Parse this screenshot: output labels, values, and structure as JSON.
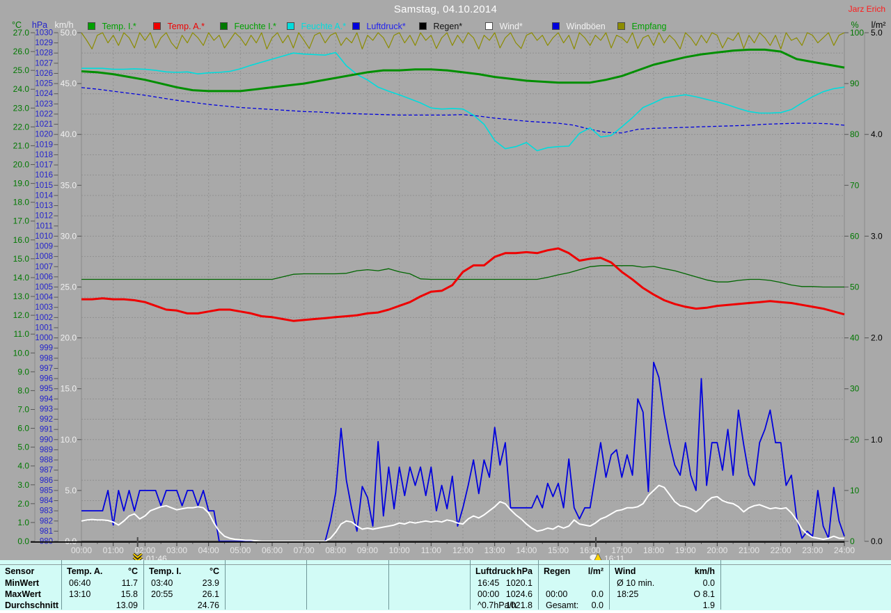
{
  "header": {
    "title": "Samstag, 04.10.2014",
    "watermark": "Jarz Erich"
  },
  "legend": {
    "items": [
      {
        "label": "Temp. I.*",
        "box": "#00a000",
        "color": "#00a000"
      },
      {
        "label": "Temp. A.*",
        "box": "#ee0000",
        "color": "#ee0000"
      },
      {
        "label": "Feuchte I.*",
        "box": "#007800",
        "color": "#00a000"
      },
      {
        "label": "Feuchte A.*",
        "box": "#00dcdc",
        "color": "#00dcdc"
      },
      {
        "label": "Luftdruck*",
        "box": "#0000dd",
        "color": "#2222ee"
      },
      {
        "label": "Regen*",
        "box": "#000000",
        "color": "#111111"
      },
      {
        "label": "Wind*",
        "box": "#ffffff",
        "color": "#f2f2f2"
      },
      {
        "label": "Windböen",
        "box": "#0000dd",
        "color": "#f2f2f2"
      },
      {
        "label": "Empfang",
        "box": "#8c8c00",
        "color": "#00a000"
      }
    ]
  },
  "axes": {
    "left": [
      {
        "unit": "°C",
        "color": "#007800"
      },
      {
        "unit": "hPa",
        "color": "#2222cc"
      },
      {
        "unit": "km/h",
        "color": "#f0f0f0"
      }
    ],
    "right": [
      {
        "unit": "%",
        "color": "#007800"
      },
      {
        "unit": "l/m²",
        "color": "#000000"
      }
    ]
  },
  "chart_data": {
    "type": "line",
    "x_unit": "hours",
    "x_range": [
      0,
      24
    ],
    "grid": true,
    "axes": {
      "temp": {
        "min": 0,
        "max": 27,
        "label_step": 1,
        "unit": "°C"
      },
      "hpa": {
        "min": 980,
        "max": 1030,
        "label_step": 1,
        "unit": "hPa"
      },
      "kmh": {
        "min": 0,
        "max": 50,
        "label_step": 5,
        "unit": "km/h"
      },
      "pct": {
        "min": 0,
        "max": 100,
        "label_step": 10,
        "unit": "%"
      },
      "lm2": {
        "min": 0,
        "max": 5,
        "label_step": 1,
        "unit": "l/m²"
      }
    },
    "markers": [
      {
        "time": "01:46",
        "hour": 1.767,
        "icon": "storm-arrow-icon"
      },
      {
        "time": "16:11",
        "hour": 16.183,
        "icon": "cloud-warning-icon"
      }
    ],
    "series": [
      {
        "name": "Empfang",
        "axis": "pct",
        "color": "#8c8c00",
        "width": 1.2,
        "step_min": 10,
        "values": [
          100,
          98.5,
          96.8,
          99.5,
          100,
          98,
          99.5,
          97.5,
          100,
          99,
          97,
          100,
          98.5,
          100,
          97,
          99,
          100,
          98,
          96.8,
          99.5,
          98,
          100,
          99,
          97.5,
          100,
          98.5,
          99.5,
          97,
          98.5,
          100,
          99,
          97.5,
          99.5,
          98,
          100,
          96.8,
          99,
          100,
          98,
          99.5,
          97,
          100,
          98.5,
          96.9,
          99.5,
          100,
          98,
          99.5,
          100,
          97.5,
          99,
          98,
          100,
          96.8,
          99.5,
          98.5,
          100,
          99,
          97,
          99.5,
          100,
          98,
          99.5,
          97.5,
          100,
          98.5,
          99.5,
          96.9,
          99,
          100,
          97.5,
          99.5,
          98,
          100,
          99,
          96.8,
          99.5,
          98.5,
          100,
          97,
          99,
          100,
          98,
          96.9,
          99.5,
          100,
          98.5,
          99.5,
          97.5,
          99,
          100,
          98,
          99.5,
          96.8,
          100,
          99,
          97.5,
          99.5,
          98.5,
          100,
          97,
          99.5,
          99,
          98,
          100,
          96.9,
          99,
          99.5,
          97.5,
          100,
          98,
          99.5,
          98.5,
          96.8,
          100,
          99,
          97.5,
          99.5,
          98,
          100,
          99.5,
          97,
          99,
          98.5,
          100,
          96.9,
          99.5,
          98,
          100,
          99,
          97.5,
          99.5,
          96.8,
          100,
          98.5,
          99,
          97.5,
          100,
          99.5,
          98,
          99,
          100,
          97.5,
          99.5,
          100
        ]
      },
      {
        "name": "Luftdruck",
        "axis": "hpa",
        "color": "#0000dd",
        "width": 1.3,
        "dash": "5,3",
        "step_min": 30,
        "values": [
          1024.6,
          1024.45,
          1024.25,
          1024.05,
          1023.85,
          1023.6,
          1023.35,
          1023.15,
          1022.95,
          1022.8,
          1022.65,
          1022.55,
          1022.45,
          1022.35,
          1022.25,
          1022.2,
          1022.1,
          1022.05,
          1022,
          1021.95,
          1021.9,
          1021.9,
          1021.9,
          1021.9,
          1021.95,
          1021.8,
          1021.6,
          1021.45,
          1021.3,
          1021.2,
          1021.1,
          1020.9,
          1020.5,
          1020.2,
          1020.15,
          1020.5,
          1020.6,
          1020.65,
          1020.7,
          1020.75,
          1020.8,
          1020.85,
          1020.9,
          1021,
          1021.05,
          1021.1,
          1021.1,
          1021.05,
          1020.9
        ]
      },
      {
        "name": "Feuchte A.",
        "axis": "pct",
        "color": "#00dcdc",
        "width": 1.6,
        "step_min": 20,
        "values": [
          93,
          93,
          93,
          92.8,
          92.8,
          92.9,
          92.8,
          92.6,
          92.3,
          92.2,
          92.3,
          91.9,
          92.1,
          92.2,
          92.4,
          92.9,
          93.6,
          94.2,
          94.8,
          95.4,
          96,
          95.8,
          95.7,
          95.6,
          96.1,
          93.5,
          91.8,
          90.7,
          89.3,
          88.5,
          87.8,
          87,
          86.2,
          85.2,
          85,
          85.1,
          85,
          83.8,
          82,
          78.8,
          77.2,
          77.6,
          78.4,
          76.8,
          77.4,
          77.6,
          77.7,
          80.2,
          81.3,
          79.5,
          79.8,
          81.5,
          83.3,
          85.3,
          86.2,
          87.2,
          87.5,
          87.8,
          87.4,
          86.9,
          86.4,
          85.8,
          85.1,
          84.5,
          84.2,
          84.2,
          84.3,
          84.9,
          86.2,
          87.4,
          88.4,
          89,
          89.3
        ]
      },
      {
        "name": "Feuchte I.",
        "axis": "pct",
        "color": "#006600",
        "width": 1.3,
        "step_min": 20,
        "values": [
          51.5,
          51.5,
          51.5,
          51.5,
          51.5,
          51.5,
          51.5,
          51.5,
          51.5,
          51.5,
          51.5,
          51.5,
          51.5,
          51.5,
          51.5,
          51.5,
          51.5,
          51.5,
          51.5,
          52,
          52.5,
          52.6,
          52.6,
          52.6,
          52.6,
          52.7,
          53.2,
          53.4,
          53.2,
          53.6,
          53,
          52.6,
          51.6,
          51.5,
          51.5,
          51.5,
          51.5,
          51.5,
          51.5,
          51.5,
          51.5,
          51.5,
          51.5,
          51.5,
          51.9,
          52.4,
          52.8,
          53.4,
          54,
          54.2,
          54.2,
          54.2,
          54.2,
          53.9,
          54.05,
          53.6,
          53.2,
          52.6,
          52,
          51.4,
          51,
          51,
          51.3,
          51.5,
          51.5,
          51.3,
          50.9,
          50.4,
          50.1,
          50.1,
          50,
          50,
          50
        ]
      },
      {
        "name": "Temp. I.",
        "axis": "temp",
        "color": "#008f00",
        "width": 3,
        "step_min": 30,
        "values": [
          24.95,
          24.9,
          24.8,
          24.65,
          24.5,
          24.3,
          24.1,
          23.95,
          23.9,
          23.9,
          23.9,
          24,
          24.1,
          24.2,
          24.3,
          24.45,
          24.6,
          24.75,
          24.9,
          25,
          25,
          25.05,
          25.05,
          25,
          24.9,
          24.8,
          24.65,
          24.55,
          24.45,
          24.4,
          24.35,
          24.35,
          24.35,
          24.5,
          24.7,
          25,
          25.3,
          25.5,
          25.7,
          25.85,
          25.95,
          26.05,
          26.1,
          26.1,
          26,
          25.6,
          25.45,
          25.3,
          25.15
        ]
      },
      {
        "name": "Temp. A.",
        "axis": "temp",
        "color": "#ee0000",
        "width": 3,
        "step_min": 20,
        "values": [
          12.85,
          12.85,
          12.9,
          12.85,
          12.85,
          12.8,
          12.7,
          12.5,
          12.3,
          12.25,
          12.1,
          12.1,
          12.2,
          12.3,
          12.3,
          12.2,
          12.1,
          11.95,
          11.9,
          11.8,
          11.7,
          11.75,
          11.8,
          11.85,
          11.9,
          11.95,
          12,
          12.1,
          12.15,
          12.3,
          12.5,
          12.7,
          13,
          13.25,
          13.3,
          13.6,
          14.3,
          14.65,
          14.65,
          15.1,
          15.3,
          15.3,
          15.35,
          15.3,
          15.45,
          15.55,
          15.3,
          14.9,
          15,
          15.05,
          14.8,
          14.3,
          13.9,
          13.45,
          13.1,
          12.8,
          12.6,
          12.45,
          12.35,
          12.4,
          12.5,
          12.55,
          12.6,
          12.65,
          12.7,
          12.75,
          12.7,
          12.65,
          12.55,
          12.45,
          12.35,
          12.2,
          12.05
        ]
      },
      {
        "name": "Regen",
        "axis": "lm2",
        "color": "#000000",
        "width": 1,
        "step_min": 1440,
        "values": [
          0,
          0
        ]
      },
      {
        "name": "Windböen",
        "axis": "kmh",
        "color": "#0000dd",
        "width": 1.8,
        "step_min": 10,
        "values": [
          3,
          3,
          3,
          3,
          3,
          5,
          1.6,
          5,
          3,
          5,
          3,
          5,
          5,
          5,
          5,
          3.5,
          5,
          5,
          5,
          3.5,
          5,
          5,
          3.5,
          5,
          3,
          3,
          0,
          0,
          0,
          0,
          0,
          0,
          0,
          0,
          0,
          0,
          0,
          0,
          0,
          0,
          0,
          0,
          0,
          0,
          0,
          0,
          0,
          2,
          4.8,
          11.1,
          6,
          3.2,
          1,
          5.4,
          4.3,
          1.5,
          9.8,
          2.5,
          7.3,
          3.2,
          7.3,
          4.5,
          7.3,
          5.5,
          7.3,
          4.5,
          7.3,
          3,
          5.5,
          3.2,
          6.4,
          1.5,
          3.3,
          5.5,
          8,
          4.7,
          8,
          6.3,
          11.2,
          7.5,
          9.7,
          3.3,
          3.3,
          3.3,
          3.3,
          3.3,
          4.5,
          3.3,
          5.7,
          4.4,
          5.7,
          3.3,
          8.1,
          3.3,
          2.2,
          3.3,
          3.3,
          6.5,
          9.7,
          6.3,
          8.5,
          9,
          6.3,
          8.5,
          6.5,
          14,
          12.7,
          4.9,
          17.6,
          16.1,
          12.5,
          9.7,
          7.5,
          6.5,
          9.7,
          6.5,
          5,
          16,
          5.5,
          9.7,
          9.7,
          7,
          11,
          6.5,
          12.9,
          9.5,
          6.5,
          5.5,
          9.7,
          11,
          12.9,
          9.7,
          9.7,
          5.5,
          6.5,
          2.3,
          0.3,
          1,
          0.5,
          5,
          1.5,
          0.3,
          5.3,
          2,
          0.5
        ]
      },
      {
        "name": "Wind",
        "axis": "kmh",
        "color": "#ffffff",
        "width": 2,
        "step_min": 10,
        "values": [
          2,
          2.1,
          2.15,
          2.1,
          2.1,
          2.05,
          1.9,
          1.6,
          2,
          2.5,
          2.7,
          2.2,
          2.5,
          3,
          3.2,
          3.4,
          3.5,
          3.3,
          3.1,
          3.2,
          3.3,
          3.3,
          3.4,
          3.3,
          2.8,
          1.8,
          1,
          0.5,
          0.3,
          0.2,
          0.15,
          0.1,
          0.1,
          0.05,
          0,
          0,
          0,
          0,
          0,
          0,
          0,
          0,
          0,
          0,
          0,
          0,
          0,
          0.3,
          0.9,
          1.7,
          2,
          1.9,
          1.5,
          1.2,
          1.3,
          1.2,
          1.3,
          1.4,
          1.5,
          1.6,
          1.8,
          1.7,
          1.9,
          1.8,
          1.9,
          2,
          1.9,
          2,
          1.9,
          2.1,
          2,
          1.8,
          1.7,
          2.2,
          2.5,
          2.3,
          2.6,
          3,
          3.4,
          3.9,
          3.7,
          3.1,
          2.6,
          2.2,
          1.7,
          1.3,
          1,
          1.1,
          1.3,
          1.2,
          1.5,
          1.3,
          1.5,
          2.1,
          1.7,
          1.6,
          1.5,
          1.8,
          2.2,
          2.4,
          2.7,
          3,
          3.1,
          3.3,
          3.3,
          3.4,
          3.7,
          4.5,
          5,
          5.5,
          5.3,
          4.6,
          3.9,
          3.5,
          3.4,
          3.2,
          2.9,
          3.3,
          3.9,
          4.3,
          4.4,
          4,
          3.8,
          3.7,
          3.4,
          2.9,
          3.3,
          3.5,
          3.6,
          3.4,
          3.2,
          3.3,
          3.2,
          3.3,
          2.8,
          2.1,
          1.2,
          0.7,
          0.4,
          0.3,
          0.2,
          0.3,
          0.5,
          0.3,
          0.3
        ]
      }
    ]
  },
  "sensor_table": {
    "row_labels": [
      "Sensor",
      "MinWert",
      "MaxWert",
      "Durchschnitt"
    ],
    "sensors": [
      {
        "name": "Temp. A.",
        "unit": "°C",
        "col": 0,
        "rows": [
          [
            "06:40",
            "11.7"
          ],
          [
            "13:10",
            "15.8"
          ],
          [
            "",
            "13.09"
          ]
        ]
      },
      {
        "name": "Temp. I.",
        "unit": "°C",
        "col": 1,
        "rows": [
          [
            "03:40",
            "23.9"
          ],
          [
            "20:55",
            "26.1"
          ],
          [
            "",
            "24.76"
          ]
        ]
      },
      {
        "name": "Luftdruck",
        "unit": "hPa",
        "col": 5,
        "rows": [
          [
            "16:45",
            "1020.1"
          ],
          [
            "00:00",
            "1024.6"
          ],
          [
            "^0.7hPa/h",
            "1021.8"
          ]
        ]
      },
      {
        "name": "Regen",
        "unit": "l/m²",
        "col": 6,
        "rows": [
          [
            "",
            ""
          ],
          [
            "00:00",
            "0.0"
          ],
          [
            "Gesamt:",
            "0.0"
          ]
        ]
      },
      {
        "name": "Wind",
        "unit": "km/h",
        "col": 7,
        "rows": [
          [
            "Ø 10 min.",
            "0.0"
          ],
          [
            "18:25",
            "O 8.1"
          ],
          [
            "",
            "1.9"
          ]
        ]
      }
    ]
  }
}
